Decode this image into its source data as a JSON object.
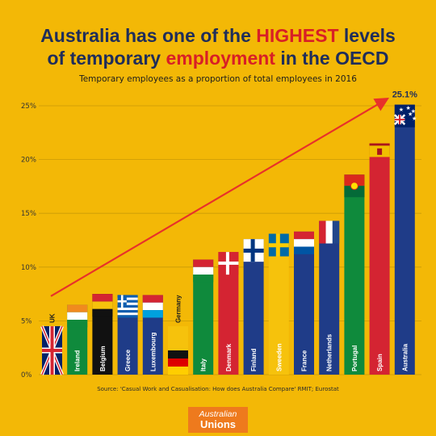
{
  "title": {
    "line1_pre": "Australia has one of the ",
    "line1_hl": "HIGHEST",
    "line1_post": " levels",
    "line2_pre": "of temporary ",
    "line2_hl": "employment",
    "line2_post": " in the OECD"
  },
  "subtitle": "Temporary employees as a proportion of total employees in 2016",
  "source": "Source: 'Casual Work and Casualisation: How does Australia Compare' RMIT; Eurostat",
  "logo": {
    "line1": "Australian",
    "line2": "Unions"
  },
  "colors": {
    "background": "#f3b806",
    "title": "#1f2d5a",
    "highlight": "#d81f26",
    "arrow": "#e8312a",
    "navy": "#1f3c88",
    "red": "#d42432",
    "green": "#0f8a3c",
    "white": "#ffffff",
    "orange": "#f08a1e",
    "black": "#111111",
    "yellow": "#f6c20c",
    "gold": "#f1bf00"
  },
  "chart_data": {
    "type": "bar",
    "ylim": [
      0,
      25
    ],
    "yticks": [
      "0%",
      "5%",
      "10%",
      "15%",
      "20%",
      "25%"
    ],
    "grid": true,
    "highlight_label": "25.1%",
    "categories": [
      "UK",
      "Ireland",
      "Belgium",
      "Greece",
      "Luxembourg",
      "Germany",
      "Italy",
      "Denmark",
      "Finland",
      "Sweeden",
      "France",
      "Netherlands",
      "Portugal",
      "Spain",
      "Australia"
    ],
    "values": [
      4.5,
      6.5,
      7.5,
      7.4,
      7.4,
      4.5,
      10.7,
      11.4,
      12.6,
      13.1,
      13.3,
      14.3,
      18.6,
      21.5,
      25.1
    ],
    "flags": [
      "uk-flag",
      "ireland-flag",
      "belgium-flag",
      "greece-flag",
      "luxembourg-flag",
      "germany-flag",
      "italy-flag",
      "denmark-flag",
      "finland-flag",
      "sweden-flag",
      "france-flag",
      "netherlands-flag",
      "portugal-flag",
      "spain-flag",
      "australia-flag"
    ],
    "bar_colors": [
      "navy",
      "green",
      "black",
      "navy",
      "navy",
      "yellow",
      "green",
      "red",
      "navy",
      "yellow",
      "navy",
      "navy",
      "green",
      "red",
      "navy"
    ],
    "trend": "arrow rising from UK to Australia"
  }
}
